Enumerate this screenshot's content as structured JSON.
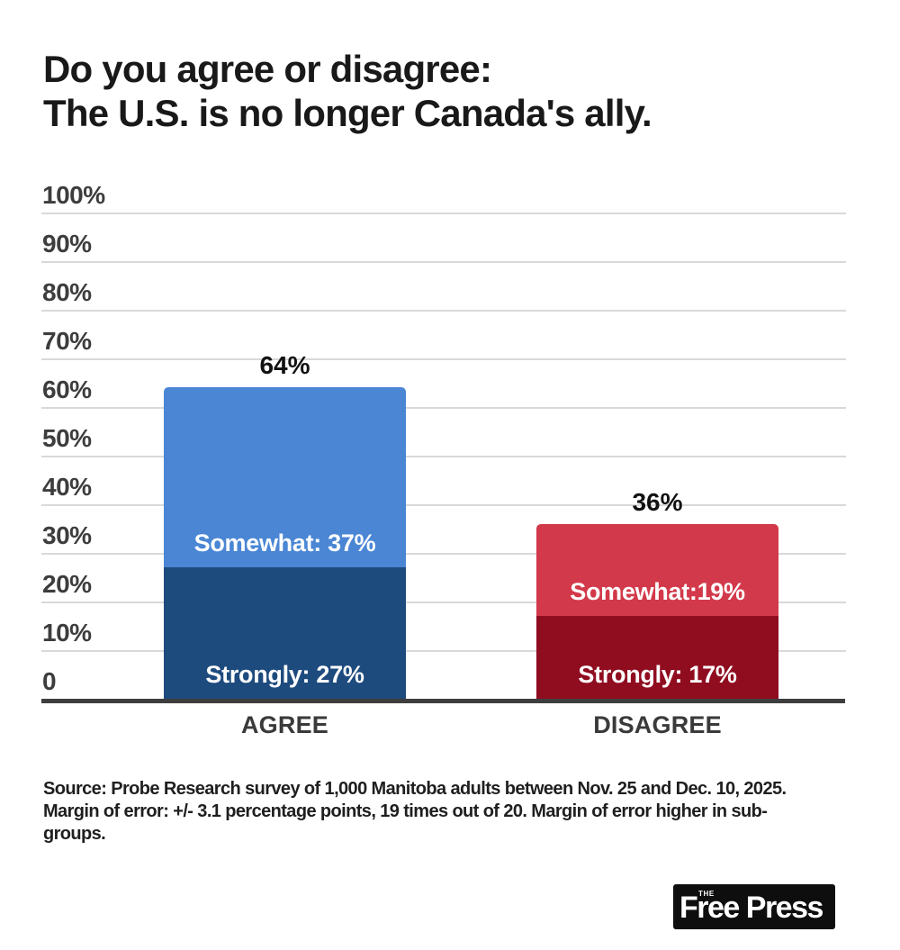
{
  "title": {
    "line1": "Do you agree or disagree:",
    "line2": "The U.S. is no longer Canada's ally."
  },
  "chart_data": {
    "type": "bar",
    "stacked": true,
    "title": "Do you agree or disagree: The U.S. is no longer Canada's ally.",
    "categories": [
      "AGREE",
      "DISAGREE"
    ],
    "series": [
      {
        "name": "Strongly",
        "values": [
          27,
          17
        ],
        "labels": [
          "Strongly: 27%",
          "Strongly: 17%"
        ],
        "colors": [
          "#1e4b7e",
          "#900d20"
        ]
      },
      {
        "name": "Somewhat",
        "values": [
          37,
          19
        ],
        "labels": [
          "Somewhat: 37%",
          "Somewhat:19%"
        ],
        "colors": [
          "#4a86d4",
          "#d2394a"
        ]
      }
    ],
    "totals": [
      64,
      36
    ],
    "total_labels": [
      "64%",
      "36%"
    ],
    "y_ticks": [
      "100%",
      "90%",
      "80%",
      "70%",
      "60%",
      "50%",
      "40%",
      "30%",
      "20%",
      "10%",
      "0"
    ],
    "ylim": [
      0,
      100
    ],
    "grid": true,
    "legend": "none",
    "colors": {
      "gridline": "#d9d9d9",
      "axis": "#3e3e3e",
      "tick_text": "#3d3d3d",
      "category_text": "#3a3a3a"
    }
  },
  "source": {
    "line1": "Source: Probe Research survey of 1,000 Manitoba adults between Nov. 25 and Dec. 10, 2025.",
    "line2": "Margin of error: +/- 3.1 percentage points, 19 times out of 20. Margin of error higher in sub-",
    "line3": "groups."
  },
  "logo": {
    "the": "THE",
    "name": "Free Press"
  }
}
